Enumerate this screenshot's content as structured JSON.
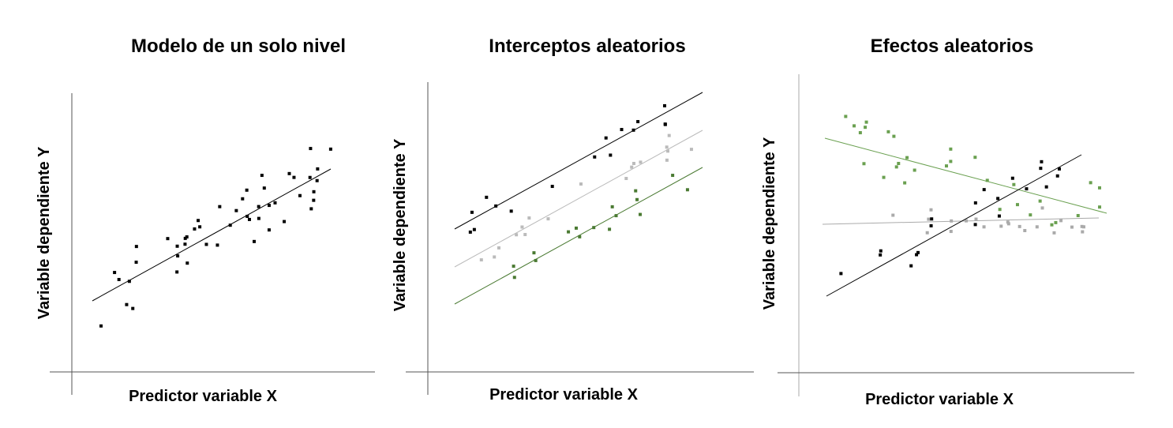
{
  "panels": [
    {
      "title": "Modelo de un solo nivel",
      "y_label": "Variable dependiente Y",
      "x_label": "Predictor variable X"
    },
    {
      "title": "Interceptos aleatorios",
      "y_label": "Variable dependiente Y",
      "x_label": "Predictor variable X"
    },
    {
      "title": "Efectos aleatorios",
      "y_label": "Variable dependiente Y",
      "x_label": "Predictor variable X"
    }
  ]
}
